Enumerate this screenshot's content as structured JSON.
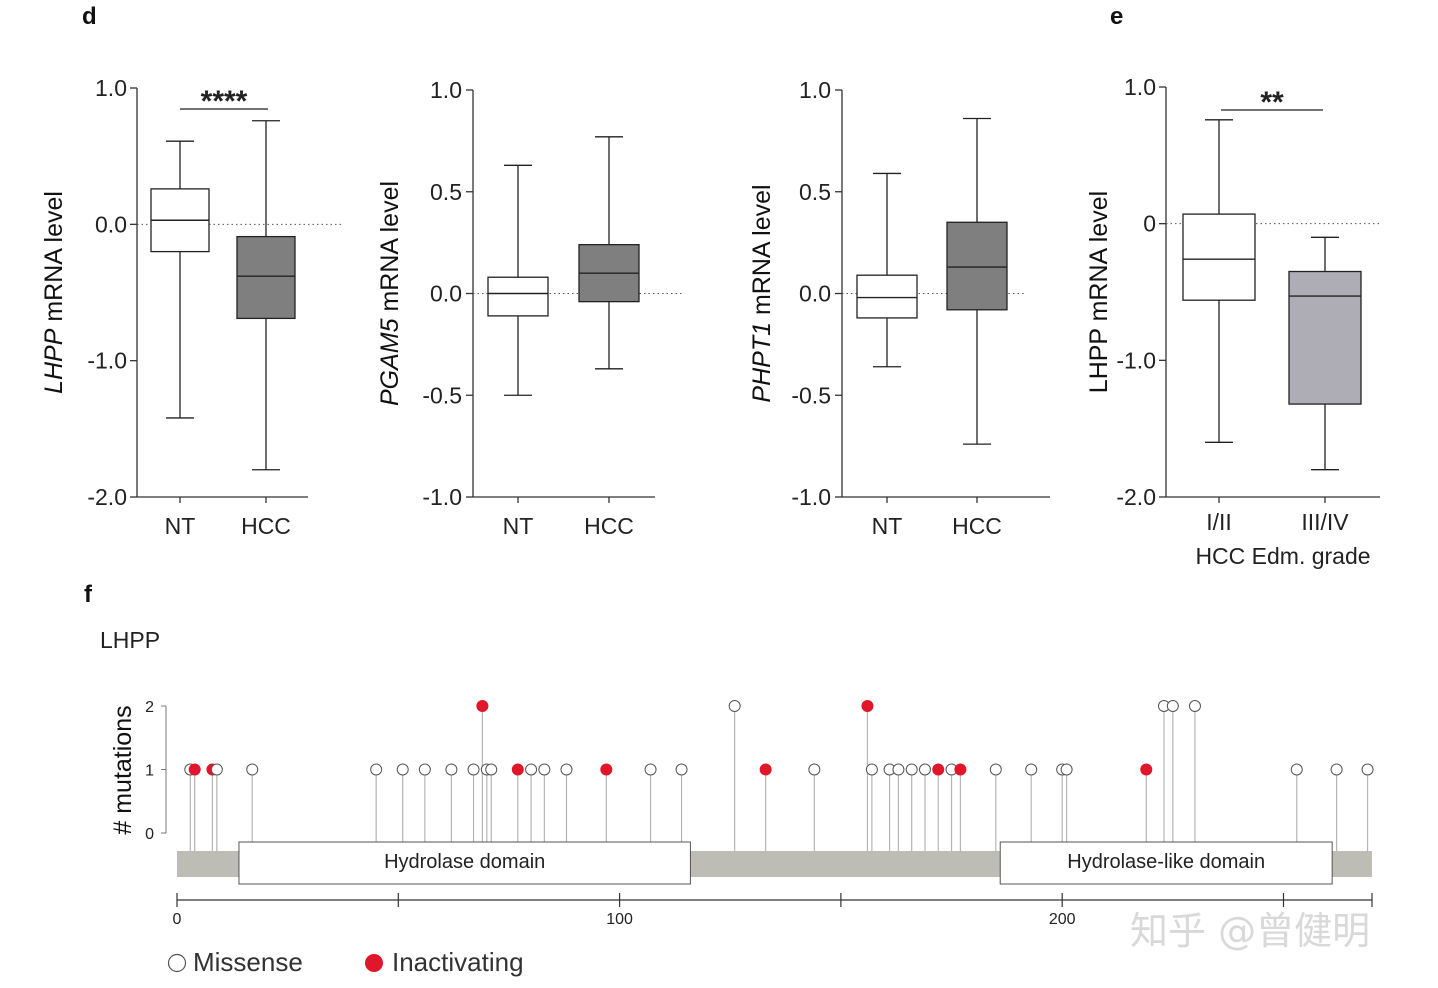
{
  "panels": {
    "d": "d",
    "e": "e",
    "f": "f"
  },
  "watermark": "知乎 @曾健明",
  "chart_data": [
    {
      "type": "box",
      "ylabel_italic": "LHPP",
      "ylabel_rest": " mRNA level",
      "yticks": [
        "1.0",
        "0.0",
        "-1.0",
        "-2.0"
      ],
      "ylim": [
        -2.0,
        1.0
      ],
      "categories": [
        "NT",
        "HCC"
      ],
      "boxes": [
        {
          "min": -1.42,
          "q1": -0.2,
          "median": 0.03,
          "q3": 0.26,
          "max": 0.61,
          "fill": "#ffffff"
        },
        {
          "min": -1.8,
          "q1": -0.69,
          "median": -0.38,
          "q3": -0.09,
          "max": 0.76,
          "fill": "#7f7f7f"
        }
      ],
      "significance": "****",
      "reference_line": 0
    },
    {
      "type": "box",
      "ylabel_italic": "PGAM5",
      "ylabel_rest": " mRNA level",
      "yticks": [
        "1.0",
        "0.5",
        "0.0",
        "-0.5",
        "-1.0"
      ],
      "ylim": [
        -1.0,
        1.0
      ],
      "categories": [
        "NT",
        "HCC"
      ],
      "boxes": [
        {
          "min": -0.5,
          "q1": -0.11,
          "median": 0.0,
          "q3": 0.08,
          "max": 0.63,
          "fill": "#ffffff"
        },
        {
          "min": -0.37,
          "q1": -0.04,
          "median": 0.1,
          "q3": 0.24,
          "max": 0.77,
          "fill": "#7f7f7f"
        }
      ],
      "reference_line": 0
    },
    {
      "type": "box",
      "ylabel_italic": "PHPT1",
      "ylabel_rest": " mRNA level",
      "yticks": [
        "1.0",
        "0.5",
        "0.0",
        "-0.5",
        "-1.0"
      ],
      "ylim": [
        -1.0,
        1.0
      ],
      "categories": [
        "NT",
        "HCC"
      ],
      "boxes": [
        {
          "min": -0.36,
          "q1": -0.12,
          "median": -0.02,
          "q3": 0.09,
          "max": 0.59,
          "fill": "#ffffff"
        },
        {
          "min": -0.74,
          "q1": -0.08,
          "median": 0.13,
          "q3": 0.35,
          "max": 0.86,
          "fill": "#7f7f7f"
        }
      ],
      "reference_line": 0
    },
    {
      "type": "box",
      "ylabel_italic": "",
      "ylabel_rest": "LHPP mRNA level",
      "yticks": [
        "1.0",
        "0",
        "-1.0",
        "-2.0"
      ],
      "ylim": [
        -2.0,
        1.0
      ],
      "categories": [
        "I/II",
        "III/IV"
      ],
      "xlabel": "HCC Edm. grade",
      "boxes": [
        {
          "min": -1.6,
          "q1": -0.56,
          "median": -0.26,
          "q3": 0.07,
          "max": 0.76,
          "fill": "#ffffff"
        },
        {
          "min": -1.8,
          "q1": -1.32,
          "median": -0.53,
          "q3": -0.35,
          "max": -0.1,
          "fill": "#aeadb5"
        }
      ],
      "significance": "**",
      "reference_line": 0
    },
    {
      "type": "lollipop",
      "title": "LHPP",
      "ylabel": "# mutations",
      "yticks": [
        "2",
        "1",
        "0"
      ],
      "ylim": [
        0,
        2
      ],
      "xlim": [
        0,
        270
      ],
      "xticks": [
        "0",
        "100",
        "200"
      ],
      "domains": [
        {
          "name": "Hydrolase domain",
          "start": 14,
          "end": 116
        },
        {
          "name": "Hydrolase-like domain",
          "start": 186,
          "end": 261
        }
      ],
      "legend": [
        "Missense",
        "Inactivating"
      ],
      "colors": {
        "missense": "#ffffff",
        "inactivating": "#e0162b"
      },
      "mutations": [
        {
          "pos": 3,
          "count": 1,
          "type": "missense"
        },
        {
          "pos": 4,
          "count": 1,
          "type": "inactivating"
        },
        {
          "pos": 8,
          "count": 1,
          "type": "inactivating"
        },
        {
          "pos": 9,
          "count": 1,
          "type": "missense"
        },
        {
          "pos": 17,
          "count": 1,
          "type": "missense"
        },
        {
          "pos": 45,
          "count": 1,
          "type": "missense"
        },
        {
          "pos": 51,
          "count": 1,
          "type": "missense"
        },
        {
          "pos": 56,
          "count": 1,
          "type": "missense"
        },
        {
          "pos": 62,
          "count": 1,
          "type": "missense"
        },
        {
          "pos": 67,
          "count": 1,
          "type": "missense"
        },
        {
          "pos": 69,
          "count": 2,
          "type": "inactivating"
        },
        {
          "pos": 70,
          "count": 1,
          "type": "missense"
        },
        {
          "pos": 71,
          "count": 1,
          "type": "missense"
        },
        {
          "pos": 77,
          "count": 1,
          "type": "inactivating"
        },
        {
          "pos": 80,
          "count": 1,
          "type": "missense"
        },
        {
          "pos": 83,
          "count": 1,
          "type": "missense"
        },
        {
          "pos": 88,
          "count": 1,
          "type": "missense"
        },
        {
          "pos": 97,
          "count": 1,
          "type": "inactivating"
        },
        {
          "pos": 107,
          "count": 1,
          "type": "missense"
        },
        {
          "pos": 114,
          "count": 1,
          "type": "missense"
        },
        {
          "pos": 126,
          "count": 2,
          "type": "missense"
        },
        {
          "pos": 133,
          "count": 1,
          "type": "inactivating"
        },
        {
          "pos": 144,
          "count": 1,
          "type": "missense"
        },
        {
          "pos": 156,
          "count": 2,
          "type": "inactivating"
        },
        {
          "pos": 157,
          "count": 1,
          "type": "missense"
        },
        {
          "pos": 161,
          "count": 1,
          "type": "missense"
        },
        {
          "pos": 163,
          "count": 1,
          "type": "missense"
        },
        {
          "pos": 166,
          "count": 1,
          "type": "missense"
        },
        {
          "pos": 169,
          "count": 1,
          "type": "missense"
        },
        {
          "pos": 172,
          "count": 1,
          "type": "inactivating"
        },
        {
          "pos": 175,
          "count": 1,
          "type": "missense"
        },
        {
          "pos": 177,
          "count": 1,
          "type": "inactivating"
        },
        {
          "pos": 185,
          "count": 1,
          "type": "missense"
        },
        {
          "pos": 193,
          "count": 1,
          "type": "missense"
        },
        {
          "pos": 200,
          "count": 1,
          "type": "missense"
        },
        {
          "pos": 201,
          "count": 1,
          "type": "missense"
        },
        {
          "pos": 219,
          "count": 1,
          "type": "inactivating"
        },
        {
          "pos": 223,
          "count": 2,
          "type": "missense"
        },
        {
          "pos": 225,
          "count": 2,
          "type": "missense"
        },
        {
          "pos": 230,
          "count": 2,
          "type": "missense"
        },
        {
          "pos": 253,
          "count": 1,
          "type": "missense"
        },
        {
          "pos": 262,
          "count": 1,
          "type": "missense"
        },
        {
          "pos": 269,
          "count": 1,
          "type": "missense"
        }
      ]
    }
  ]
}
